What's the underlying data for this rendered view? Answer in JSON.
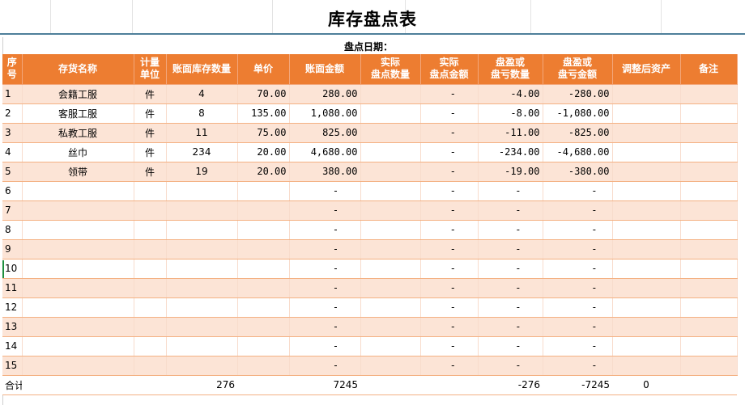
{
  "title": "库存盘点表",
  "date_label": "盘点日期：",
  "headers": [
    [
      "序",
      "号"
    ],
    [
      "存货名称"
    ],
    [
      "计量",
      "单位"
    ],
    [
      "账面库存数量"
    ],
    [
      "单价"
    ],
    [
      "账面金额"
    ],
    [
      "实际",
      "盘点数量"
    ],
    [
      "实际",
      "盘点金额"
    ],
    [
      "盘盈或",
      "盘亏数量"
    ],
    [
      "盘盈或",
      "盘亏金额"
    ],
    [
      "调整后资产"
    ],
    [
      "备注"
    ]
  ],
  "rows": [
    [
      "1",
      "会籍工服",
      "件",
      "4",
      "70.00",
      "280.00",
      "",
      "-",
      "-4.00",
      "-280.00",
      "",
      ""
    ],
    [
      "2",
      "客服工服",
      "件",
      "8",
      "135.00",
      "1,080.00",
      "",
      "-",
      "-8.00",
      "-1,080.00",
      "",
      ""
    ],
    [
      "3",
      "私教工服",
      "件",
      "11",
      "75.00",
      "825.00",
      "",
      "-",
      "-11.00",
      "-825.00",
      "",
      ""
    ],
    [
      "4",
      "丝巾",
      "件",
      "234",
      "20.00",
      "4,680.00",
      "",
      "-",
      "-234.00",
      "-4,680.00",
      "",
      ""
    ],
    [
      "5",
      "领带",
      "件",
      "19",
      "20.00",
      "380.00",
      "",
      "-",
      "-19.00",
      "-380.00",
      "",
      ""
    ],
    [
      "6",
      "",
      "",
      "",
      "",
      "-",
      "",
      "-",
      "-",
      "-",
      "",
      ""
    ],
    [
      "7",
      "",
      "",
      "",
      "",
      "-",
      "",
      "-",
      "-",
      "-",
      "",
      ""
    ],
    [
      "8",
      "",
      "",
      "",
      "",
      "-",
      "",
      "-",
      "-",
      "-",
      "",
      ""
    ],
    [
      "9",
      "",
      "",
      "",
      "",
      "-",
      "",
      "-",
      "-",
      "-",
      "",
      ""
    ],
    [
      "10",
      "",
      "",
      "",
      "",
      "-",
      "",
      "-",
      "-",
      "-",
      "",
      ""
    ],
    [
      "11",
      "",
      "",
      "",
      "",
      "-",
      "",
      "-",
      "-",
      "-",
      "",
      ""
    ],
    [
      "12",
      "",
      "",
      "",
      "",
      "-",
      "",
      "-",
      "-",
      "-",
      "",
      ""
    ],
    [
      "13",
      "",
      "",
      "",
      "",
      "-",
      "",
      "-",
      "-",
      "-",
      "",
      ""
    ],
    [
      "14",
      "",
      "",
      "",
      "",
      "-",
      "",
      "-",
      "-",
      "-",
      "",
      ""
    ],
    [
      "15",
      "",
      "",
      "",
      "",
      "-",
      "",
      "-",
      "-",
      "-",
      "",
      ""
    ]
  ],
  "total": [
    "合计",
    "",
    "",
    "276",
    "",
    "7245",
    "",
    "",
    "-276",
    "-7245",
    "0",
    ""
  ],
  "colors": {
    "header": "#ed7d31",
    "band": "#fce4d6",
    "title_rule": "#4f7f9a"
  }
}
